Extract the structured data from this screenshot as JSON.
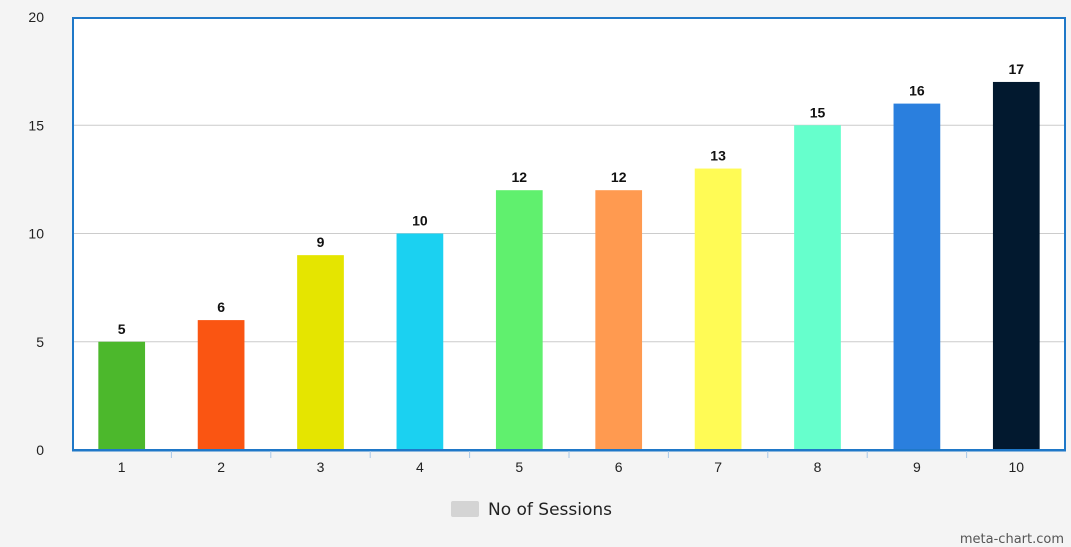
{
  "chart_data": {
    "type": "bar",
    "title": "",
    "xlabel": "",
    "ylabel": "",
    "categories": [
      "1",
      "2",
      "3",
      "4",
      "5",
      "6",
      "7",
      "8",
      "9",
      "10"
    ],
    "series": [
      {
        "name": "No of Sessions",
        "values": [
          5,
          6,
          9,
          10,
          12,
          12,
          13,
          15,
          16,
          17
        ]
      }
    ],
    "bar_colors": [
      "#4cb82c",
      "#fa5512",
      "#e5e500",
      "#1bd1f1",
      "#60f06e",
      "#ff9a50",
      "#fffb55",
      "#66ffcc",
      "#2a7fde",
      "#02192f"
    ],
    "ylim": [
      0,
      20
    ],
    "yticks": [
      0,
      5,
      10,
      15,
      20
    ],
    "grid": true,
    "data_labels": true,
    "legend": {
      "placement": "bottom-center",
      "swatch_color": "#d4d4d4"
    },
    "credit": "meta-chart.com",
    "colors": {
      "background": "#f4f4f4",
      "plot_background": "#ffffff",
      "plot_border": "#1f78c8",
      "grid": "#cccccc"
    }
  }
}
